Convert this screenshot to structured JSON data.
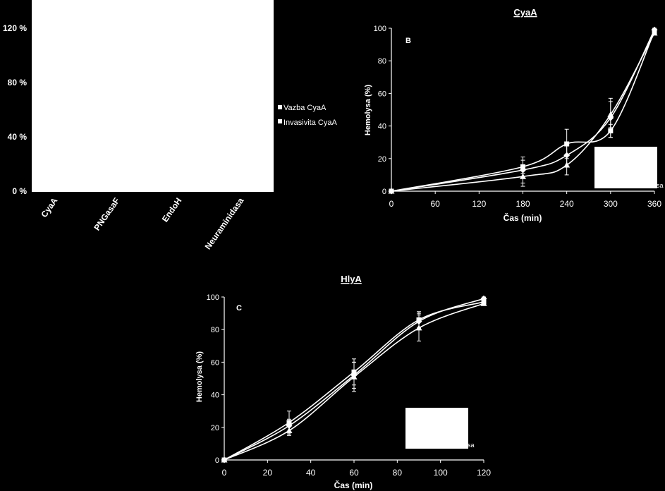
{
  "chart_data": [
    {
      "id": "A",
      "type": "bar",
      "title": "",
      "categories": [
        "CyaA",
        "PNGasaF",
        "EndoH",
        "Neuraminidasa"
      ],
      "y_ticks": [
        "0 %",
        "40 %",
        "80 %",
        "120 %"
      ],
      "ylim": [
        0,
        120
      ],
      "legend": [
        "Vazba CyaA",
        "Invasivita CyaA"
      ],
      "legend_placement": "right"
    },
    {
      "id": "B",
      "type": "line",
      "title": "CyaA",
      "panel_label": "B",
      "xlabel": "Čas (min)",
      "ylabel": "Hemolysa (%)",
      "x_ticks": [
        "0",
        "60",
        "120",
        "180",
        "240",
        "300",
        "360"
      ],
      "y_ticks": [
        "0",
        "20",
        "40",
        "60",
        "80",
        "100"
      ],
      "xlim": [
        0,
        360
      ],
      "ylim": [
        0,
        100
      ],
      "legend_fragment": "sa",
      "series": [
        {
          "marker": "square",
          "x": [
            0,
            180,
            240,
            300,
            360
          ],
          "y": [
            0,
            15,
            29,
            37,
            98
          ],
          "err": [
            0,
            4,
            9,
            4,
            1
          ]
        },
        {
          "marker": "triangle",
          "x": [
            0,
            180,
            240,
            300,
            360
          ],
          "y": [
            0,
            9,
            16,
            47,
            97
          ],
          "err": [
            0,
            6,
            6,
            8,
            1
          ]
        },
        {
          "marker": "diamond",
          "x": [
            0,
            180,
            240,
            300,
            360
          ],
          "y": [
            0,
            13,
            22,
            45,
            99
          ],
          "err": [
            0,
            8,
            7,
            12,
            1
          ]
        }
      ]
    },
    {
      "id": "C",
      "type": "line",
      "title": "HlyA",
      "panel_label": "C",
      "xlabel": "Čas (min)",
      "ylabel": "Hemolysa (%)",
      "x_ticks": [
        "0",
        "20",
        "40",
        "60",
        "80",
        "100",
        "120"
      ],
      "y_ticks": [
        "0",
        "20",
        "40",
        "60",
        "80",
        "100"
      ],
      "xlim": [
        0,
        120
      ],
      "ylim": [
        0,
        100
      ],
      "legend_fragment": "sa",
      "series": [
        {
          "marker": "square",
          "x": [
            0,
            30,
            60,
            90,
            120
          ],
          "y": [
            0,
            23,
            54,
            86,
            97
          ],
          "err": [
            0,
            7,
            8,
            5,
            1
          ]
        },
        {
          "marker": "triangle",
          "x": [
            0,
            30,
            60,
            90,
            120
          ],
          "y": [
            0,
            18,
            51,
            81,
            96
          ],
          "err": [
            0,
            3,
            9,
            8,
            1
          ]
        },
        {
          "marker": "diamond",
          "x": [
            0,
            30,
            60,
            90,
            120
          ],
          "y": [
            0,
            21,
            52,
            85,
            99
          ],
          "err": [
            0,
            4,
            8,
            5,
            1
          ]
        }
      ]
    }
  ]
}
